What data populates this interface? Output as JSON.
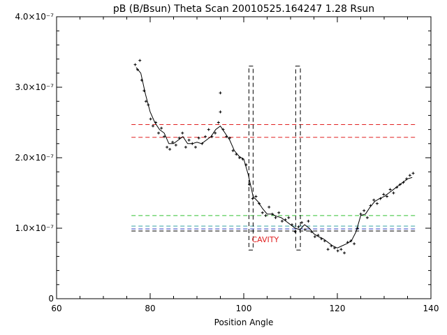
{
  "chart_data": {
    "type": "line",
    "title": "pB (B/Bsun) Theta Scan 20010525.164247 1.28 Rsun",
    "x_label": "Position Angle",
    "xlim": [
      60,
      140
    ],
    "xticks": [
      60,
      80,
      100,
      120,
      140
    ],
    "x_minor": 4,
    "ylim": [
      0,
      4e-07
    ],
    "yticks": [
      0,
      {
        "value": 1e-07,
        "label": "1.0×10⁻⁷"
      },
      {
        "value": 2e-07,
        "label": "2.0×10⁻⁷"
      },
      {
        "value": 3e-07,
        "label": "3.0×10⁻⁷"
      },
      {
        "value": 4e-07,
        "label": "4.0×10⁻⁷"
      }
    ],
    "y_minor": 5,
    "series": [
      {
        "type": "line",
        "color": "#000000",
        "x": [
          77,
          78,
          79,
          80,
          81,
          82,
          83,
          84,
          85,
          86,
          87,
          88,
          89,
          90,
          91,
          92,
          93,
          94,
          95,
          96,
          97,
          98,
          99,
          100,
          101,
          102,
          103,
          104,
          105,
          106,
          107,
          108,
          109,
          110,
          111,
          112,
          113,
          114,
          115,
          116,
          117,
          118,
          119,
          120,
          121,
          122,
          123,
          124,
          125,
          126,
          127,
          128,
          129,
          130,
          131,
          132,
          133,
          134,
          135,
          136
        ],
        "values": [
          3.28e-07,
          3.2e-07,
          2.9e-07,
          2.65e-07,
          2.5e-07,
          2.4e-07,
          2.35e-07,
          2.2e-07,
          2.2e-07,
          2.25e-07,
          2.3e-07,
          2.2e-07,
          2.2e-07,
          2.22e-07,
          2.2e-07,
          2.25e-07,
          2.3e-07,
          2.4e-07,
          2.45e-07,
          2.35e-07,
          2.25e-07,
          2.1e-07,
          2.02e-07,
          1.98e-07,
          1.75e-07,
          1.45e-07,
          1.38e-07,
          1.28e-07,
          1.2e-07,
          1.2e-07,
          1.17e-07,
          1.15e-07,
          1.1e-07,
          1.05e-07,
          1e-07,
          9.8e-08,
          1.05e-07,
          1e-07,
          9.2e-08,
          8.8e-08,
          8.5e-08,
          8e-08,
          7.5e-08,
          7.2e-08,
          7.5e-08,
          7.8e-08,
          8.2e-08,
          9.5e-08,
          1.18e-07,
          1.2e-07,
          1.3e-07,
          1.38e-07,
          1.42e-07,
          1.45e-07,
          1.5e-07,
          1.55e-07,
          1.6e-07,
          1.65e-07,
          1.7e-07,
          1.72e-07
        ]
      },
      {
        "type": "scatter",
        "marker": "+",
        "color": "#000000",
        "x": [
          76.8,
          77.3,
          77.8,
          78.2,
          78.7,
          79.1,
          79.6,
          80.1,
          80.6,
          81.2,
          81.8,
          82.4,
          83.0,
          83.6,
          84.2,
          84.8,
          85.5,
          86.2,
          86.9,
          87.6,
          88.3,
          89.0,
          89.7,
          90.4,
          91.1,
          91.8,
          92.5,
          93.2,
          93.9,
          94.6,
          95.0,
          95.0,
          95.6,
          96.3,
          97.0,
          97.7,
          98.4,
          99.1,
          99.8,
          100.5,
          101.2,
          101.9,
          102.6,
          103.3,
          104.0,
          104.7,
          105.4,
          106.1,
          106.8,
          107.5,
          108.2,
          108.9,
          109.6,
          110.3,
          111.0,
          111.7,
          112.4,
          113.1,
          113.8,
          114.5,
          115.2,
          115.9,
          116.6,
          117.3,
          118.0,
          118.7,
          119.4,
          120.1,
          120.8,
          121.5,
          122.2,
          122.9,
          123.6,
          124.3,
          125.0,
          125.7,
          126.4,
          127.1,
          127.8,
          128.5,
          129.2,
          129.9,
          130.6,
          131.3,
          132.0,
          132.7,
          133.4,
          134.1,
          134.8,
          135.5,
          136.2
        ],
        "values": [
          3.32e-07,
          3.25e-07,
          3.38e-07,
          3.1e-07,
          2.95e-07,
          2.8e-07,
          2.75e-07,
          2.55e-07,
          2.45e-07,
          2.5e-07,
          2.35e-07,
          2.42e-07,
          2.3e-07,
          2.15e-07,
          2.12e-07,
          2.22e-07,
          2.18e-07,
          2.28e-07,
          2.35e-07,
          2.15e-07,
          2.25e-07,
          2.2e-07,
          2.15e-07,
          2.28e-07,
          2.2e-07,
          2.3e-07,
          2.4e-07,
          2.3e-07,
          2.35e-07,
          2.5e-07,
          2.92e-07,
          2.65e-07,
          2.4e-07,
          2.3e-07,
          2.28e-07,
          2.1e-07,
          2.05e-07,
          2e-07,
          1.98e-07,
          1.9e-07,
          1.62e-07,
          1.42e-07,
          1.45e-07,
          1.35e-07,
          1.22e-07,
          1.18e-07,
          1.3e-07,
          1.2e-07,
          1.15e-07,
          1.22e-07,
          1.1e-07,
          1.12e-07,
          1.15e-07,
          1.05e-07,
          9.5e-08,
          1.02e-07,
          1.08e-07,
          9.8e-08,
          1.1e-07,
          9.5e-08,
          8.8e-08,
          9e-08,
          8.5e-08,
          8.2e-08,
          7e-08,
          7.5e-08,
          7.2e-08,
          6.8e-08,
          7e-08,
          6.5e-08,
          8e-08,
          8.2e-08,
          7.8e-08,
          1e-07,
          1.2e-07,
          1.25e-07,
          1.15e-07,
          1.32e-07,
          1.4e-07,
          1.35e-07,
          1.42e-07,
          1.48e-07,
          1.45e-07,
          1.55e-07,
          1.5e-07,
          1.58e-07,
          1.62e-07,
          1.65e-07,
          1.7e-07,
          1.75e-07,
          1.78e-07
        ]
      }
    ],
    "hlines": [
      {
        "value": 2.47e-07,
        "color": "#e02020"
      },
      {
        "value": 2.29e-07,
        "color": "#e02020"
      },
      {
        "value": 1.18e-07,
        "color": "#30c030"
      },
      {
        "value": 1.03e-07,
        "color": "#30a0a0"
      },
      {
        "value": 9.9e-08,
        "color": "#3040c0"
      },
      {
        "value": 9.6e-08,
        "color": "#000000"
      }
    ],
    "hline_xlim": [
      76,
      137
    ],
    "boxes": [
      {
        "x": [
          101.1,
          102
        ],
        "y": [
          6.9e-08,
          3.3e-07
        ]
      },
      {
        "x": [
          111.1,
          112.1
        ],
        "y": [
          6.9e-08,
          3.3e-07
        ]
      }
    ],
    "annotations": [
      {
        "text": "CAVITY",
        "x": 104.6,
        "y": 8e-08,
        "color": "#e02020"
      }
    ]
  }
}
